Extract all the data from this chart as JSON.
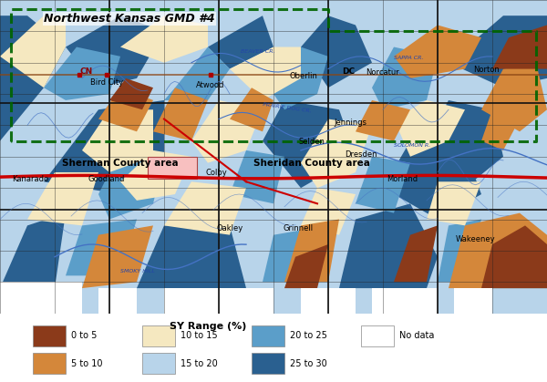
{
  "title": "Northwest Kansas GMD #4",
  "map_bg": "#a8c8e8",
  "colors": {
    "0to5": "#8B3A1A",
    "5to10": "#D4873A",
    "10to15": "#F5E8C0",
    "15to20": "#B8D4EA",
    "20to25": "#5B9EC9",
    "25to30": "#2A6090",
    "nodata": "#FFFFFF"
  },
  "legend_labels": [
    "0 to 5",
    "5 to 10",
    "10 to 15",
    "15 to 20",
    "20 to 25",
    "25 to 30",
    "No data"
  ],
  "legend_title": "SY Range (%)",
  "map_border_color": "#006400",
  "road_color_red": "#CC0000",
  "road_color_brown": "#8B4513",
  "water_color": "#4472C4",
  "figsize": [
    6.0,
    4.19
  ],
  "dpi": 100
}
